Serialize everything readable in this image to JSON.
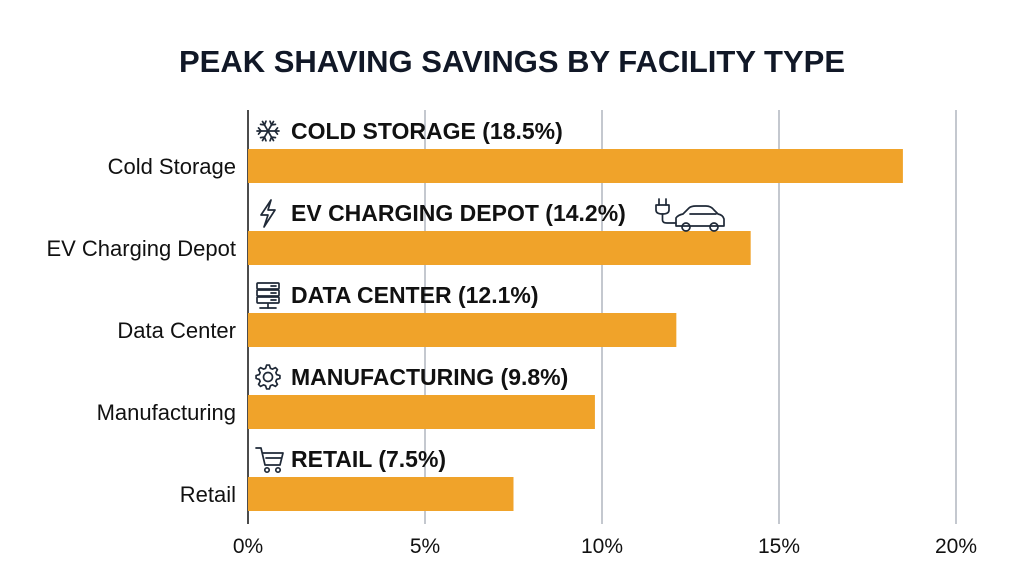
{
  "chart_data": {
    "type": "bar",
    "orientation": "horizontal",
    "title": "PEAK SHAVING SAVINGS BY FACILITY TYPE",
    "xlabel": "",
    "ylabel": "",
    "xlim": [
      0,
      20
    ],
    "x_ticks": [
      0,
      5,
      10,
      15,
      20
    ],
    "x_tick_labels": [
      "0%",
      "5%",
      "10%",
      "15%",
      "20%"
    ],
    "grid": true,
    "bar_color": "#f0a32a",
    "categories": [
      {
        "label": "Cold Storage",
        "value": 18.5,
        "annotation": "COLD STORAGE (18.5%)",
        "icon": "snowflake-icon"
      },
      {
        "label": "EV Charging Depot",
        "value": 14.2,
        "annotation": "EV CHARGING DEPOT (14.2%)",
        "icon": "lightning-icon",
        "extra_icon": "ev-car-plug-icon"
      },
      {
        "label": "Data Center",
        "value": 12.1,
        "annotation": "DATA CENTER (12.1%)",
        "icon": "server-rack-icon"
      },
      {
        "label": "Manufacturing",
        "value": 9.8,
        "annotation": "MANUFACTURING (9.8%)",
        "icon": "gear-icon"
      },
      {
        "label": "Retail",
        "value": 7.5,
        "annotation": "RETAIL (7.5%)",
        "icon": "shopping-cart-icon"
      }
    ]
  }
}
